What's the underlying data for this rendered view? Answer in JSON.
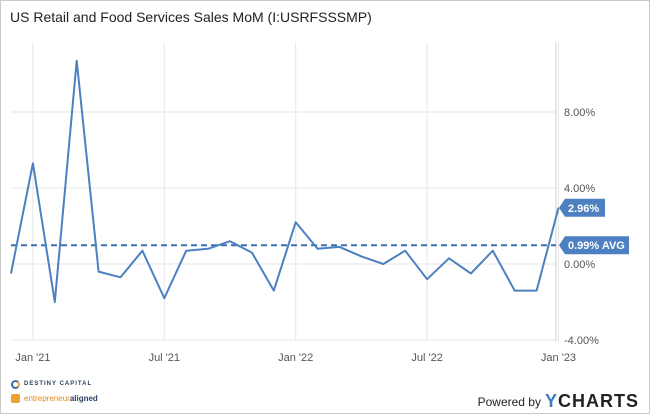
{
  "title": "US Retail and Food Services Sales MoM (I:USRFSSSMP)",
  "footer": {
    "logo1_text": "DESTINY CAPITAL",
    "logo2_prefix": "entrepreneur",
    "logo2_suffix": "aligned",
    "powered_by": "Powered by",
    "brand_y": "Y",
    "brand_rest": "CHARTS"
  },
  "colors": {
    "line": "#4d80c0",
    "flag": "#4d80c0",
    "avg_line": "#3d6fb0",
    "grid": "#e6e6e6"
  },
  "chart_data": {
    "type": "line",
    "title": "US Retail and Food Services Sales MoM (I:USRFSSSMP)",
    "series": [
      {
        "values": [
          -0.5,
          5.3,
          -2.0,
          10.7,
          -0.4,
          -0.7,
          0.7,
          -1.8,
          0.7,
          0.8,
          1.2,
          0.6,
          -1.4,
          2.2,
          0.8,
          0.9,
          0.4,
          0.0,
          0.7,
          -0.8,
          0.3,
          -0.5,
          0.7,
          -1.4,
          -1.4,
          2.96
        ]
      }
    ],
    "x_start": "Dec '20",
    "x_ticks": [
      "Jan '21",
      "Jul '21",
      "Jan '22",
      "Jul '22",
      "Jan '23"
    ],
    "y_ticks": [
      "8.00%",
      "4.00%",
      "0.00%",
      "-4.00%"
    ],
    "ylim": [
      -4,
      11.5
    ],
    "average": 0.99,
    "last_value_label": "2.96%",
    "average_label": "0.99% AVG"
  }
}
